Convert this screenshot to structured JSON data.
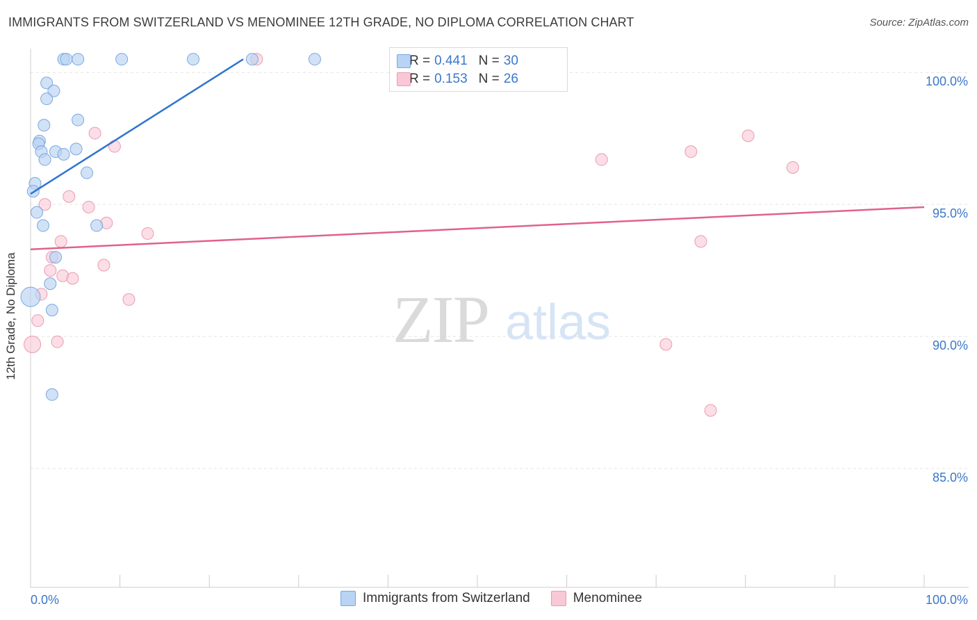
{
  "title": "IMMIGRANTS FROM SWITZERLAND VS MENOMINEE 12TH GRADE, NO DIPLOMA CORRELATION CHART",
  "source": "Source: ZipAtlas.com",
  "watermark": {
    "zip": "ZIP",
    "atlas": "atlas"
  },
  "legend": {
    "series1": {
      "r_label": "R =",
      "r_value": "0.441",
      "n_label": "N =",
      "n_value": "30"
    },
    "series2": {
      "r_label": "R =",
      "r_value": "0.153",
      "n_label": "N =",
      "n_value": "26"
    }
  },
  "colors": {
    "blue_fill": "#b8d3f3",
    "blue_stroke": "#7aa7df",
    "blue_line": "#2f74d0",
    "pink_fill": "#f9c8d6",
    "pink_stroke": "#eb9ab2",
    "pink_line": "#e0628a",
    "axis_text": "#3a78c9",
    "grid": "#e3e3e3"
  },
  "chart_data": {
    "type": "scatter",
    "title": "IMMIGRANTS FROM SWITZERLAND VS MENOMINEE 12TH GRADE, NO DIPLOMA CORRELATION CHART",
    "xlabel": "",
    "ylabel": "12th Grade, No Diploma",
    "xlim": [
      0,
      100
    ],
    "ylim": [
      80.5,
      100.9
    ],
    "x_tick_labels": [
      "0.0%",
      "100.0%"
    ],
    "y_ticks": [
      85,
      90,
      95,
      100
    ],
    "y_tick_labels": [
      "85.0%",
      "90.0%",
      "95.0%",
      "100.0%"
    ],
    "series": [
      {
        "name": "Immigrants from Switzerland",
        "color": "blue",
        "r": 0.441,
        "n": 30,
        "trend": {
          "x": [
            0,
            23.8
          ],
          "y": [
            95.4,
            100.5
          ]
        },
        "points": [
          {
            "x": 3.7,
            "y": 100.5
          },
          {
            "x": 4.0,
            "y": 100.5
          },
          {
            "x": 5.3,
            "y": 100.5
          },
          {
            "x": 10.2,
            "y": 100.5
          },
          {
            "x": 18.2,
            "y": 100.5
          },
          {
            "x": 24.8,
            "y": 100.5
          },
          {
            "x": 31.8,
            "y": 100.5
          },
          {
            "x": 1.8,
            "y": 99.6
          },
          {
            "x": 2.6,
            "y": 99.3
          },
          {
            "x": 1.8,
            "y": 99.0
          },
          {
            "x": 5.3,
            "y": 98.2
          },
          {
            "x": 1.5,
            "y": 98.0
          },
          {
            "x": 1.0,
            "y": 97.4
          },
          {
            "x": 0.9,
            "y": 97.3
          },
          {
            "x": 1.2,
            "y": 97.0
          },
          {
            "x": 2.8,
            "y": 97.0
          },
          {
            "x": 3.7,
            "y": 96.9
          },
          {
            "x": 5.1,
            "y": 97.1
          },
          {
            "x": 1.6,
            "y": 96.7
          },
          {
            "x": 6.3,
            "y": 96.2
          },
          {
            "x": 0.5,
            "y": 95.8
          },
          {
            "x": 0.3,
            "y": 95.5
          },
          {
            "x": 0.7,
            "y": 94.7
          },
          {
            "x": 1.4,
            "y": 94.2
          },
          {
            "x": 7.4,
            "y": 94.2
          },
          {
            "x": 2.8,
            "y": 93.0
          },
          {
            "x": 2.2,
            "y": 92.0
          },
          {
            "x": 0.0,
            "y": 91.5
          },
          {
            "x": 2.4,
            "y": 91.0
          },
          {
            "x": 2.4,
            "y": 87.8
          }
        ]
      },
      {
        "name": "Menominee",
        "color": "pink",
        "r": 0.153,
        "n": 26,
        "trend": {
          "x": [
            0,
            100
          ],
          "y": [
            93.3,
            94.9
          ]
        },
        "points": [
          {
            "x": 25.3,
            "y": 100.5
          },
          {
            "x": 7.2,
            "y": 97.7
          },
          {
            "x": 9.4,
            "y": 97.2
          },
          {
            "x": 63.9,
            "y": 96.7
          },
          {
            "x": 73.9,
            "y": 97.0
          },
          {
            "x": 80.3,
            "y": 97.6
          },
          {
            "x": 85.3,
            "y": 96.4
          },
          {
            "x": 4.3,
            "y": 95.3
          },
          {
            "x": 1.6,
            "y": 95.0
          },
          {
            "x": 6.5,
            "y": 94.9
          },
          {
            "x": 8.5,
            "y": 94.3
          },
          {
            "x": 13.1,
            "y": 93.9
          },
          {
            "x": 3.4,
            "y": 93.6
          },
          {
            "x": 75.0,
            "y": 93.6
          },
          {
            "x": 2.4,
            "y": 93.0
          },
          {
            "x": 8.2,
            "y": 92.7
          },
          {
            "x": 2.2,
            "y": 92.5
          },
          {
            "x": 3.6,
            "y": 92.3
          },
          {
            "x": 4.7,
            "y": 92.2
          },
          {
            "x": 1.2,
            "y": 91.6
          },
          {
            "x": 11.0,
            "y": 91.4
          },
          {
            "x": 0.8,
            "y": 90.6
          },
          {
            "x": 3.0,
            "y": 89.8
          },
          {
            "x": 0.2,
            "y": 89.7
          },
          {
            "x": 71.1,
            "y": 89.7
          },
          {
            "x": 76.1,
            "y": 87.2
          }
        ]
      }
    ]
  }
}
